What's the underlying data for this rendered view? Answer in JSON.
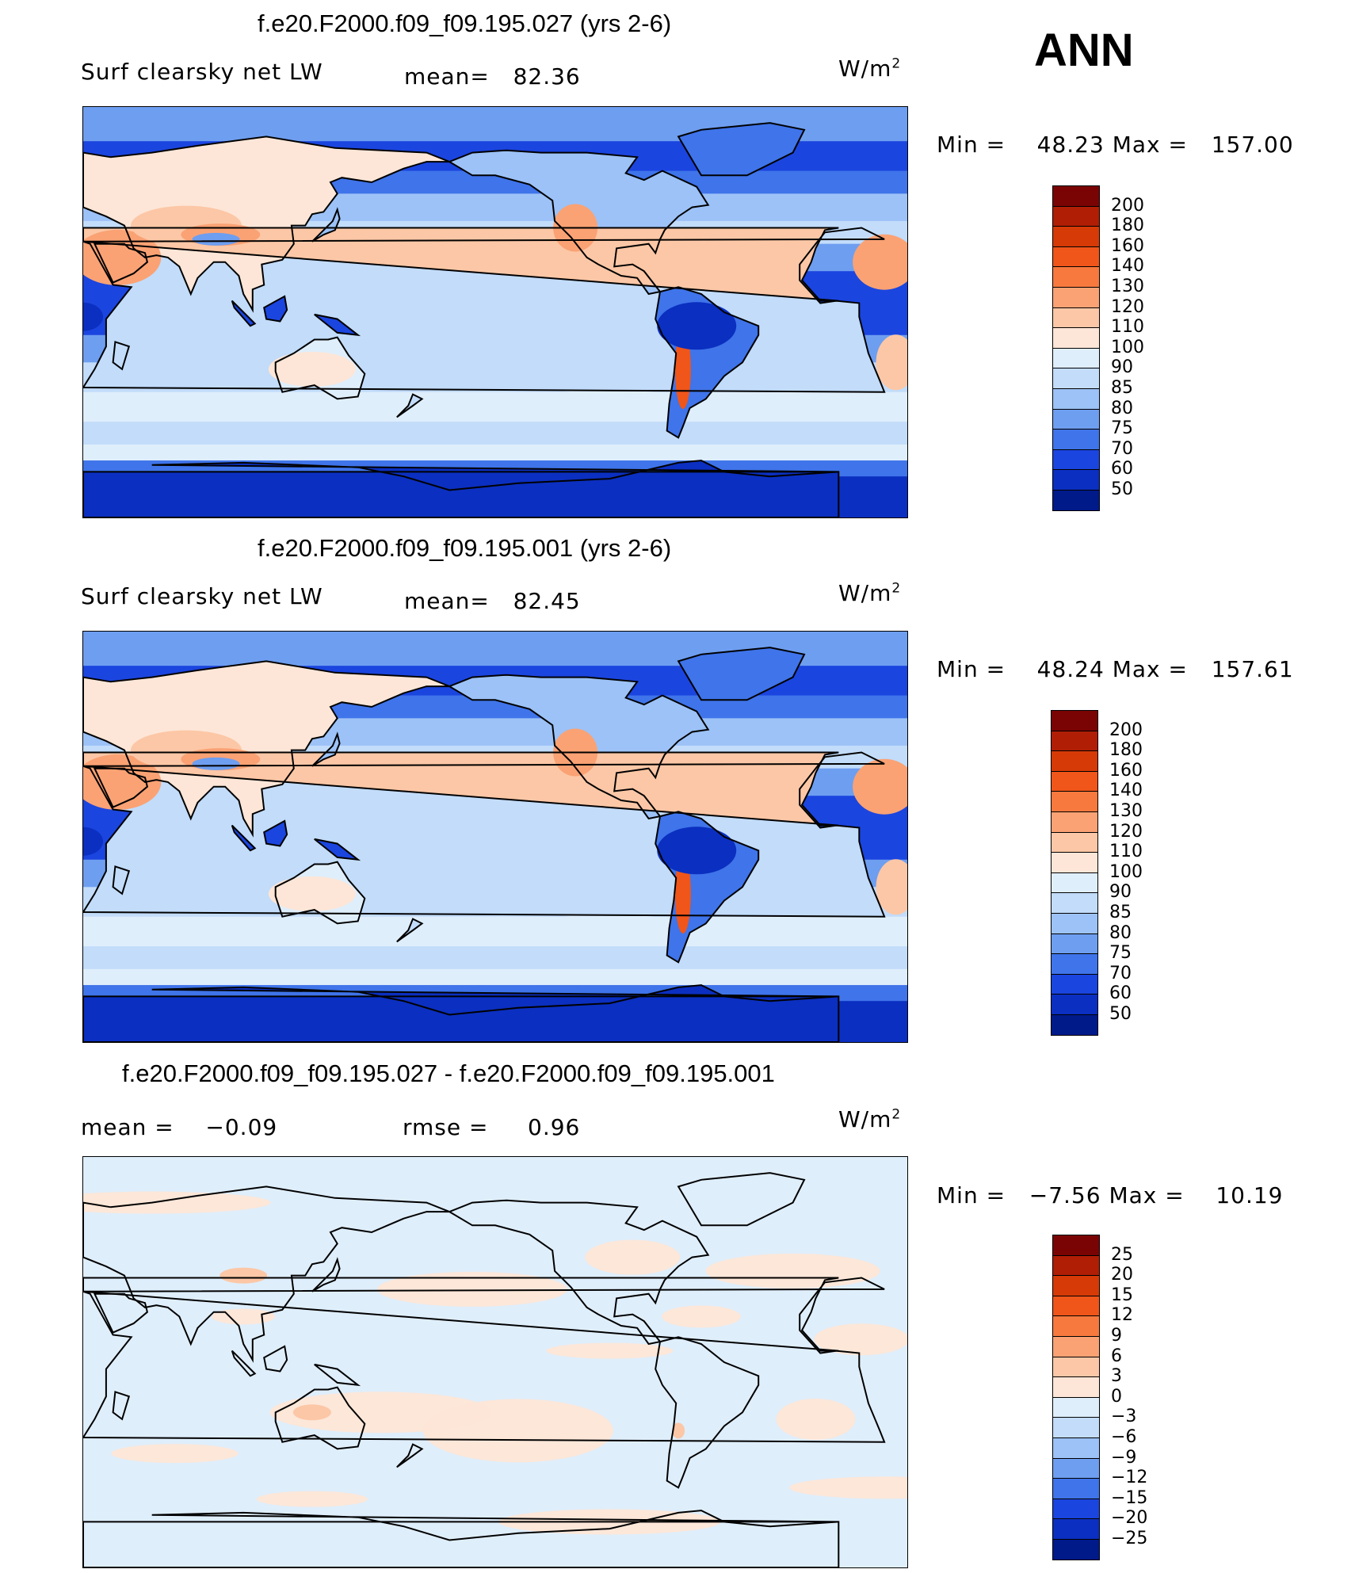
{
  "season": "ANN",
  "panels": [
    {
      "title": "f.e20.F2000.f09_f09.195.027 (yrs 2-6)",
      "left_label": "Surf clearsky net LW",
      "stat_label": "mean=",
      "stat_value": "82.36",
      "units": "W/m",
      "units_exp": "2",
      "min_label": "Min =",
      "min_value": "48.23",
      "max_label": "Max =",
      "max_value": "157.00",
      "colorbar": [
        "200",
        "180",
        "160",
        "140",
        "130",
        "120",
        "110",
        "100",
        "90",
        "85",
        "80",
        "75",
        "70",
        "60",
        "50"
      ]
    },
    {
      "title": "f.e20.F2000.f09_f09.195.001 (yrs 2-6)",
      "left_label": "Surf clearsky net LW",
      "stat_label": "mean=",
      "stat_value": "82.45",
      "units": "W/m",
      "units_exp": "2",
      "min_label": "Min =",
      "min_value": "48.24",
      "max_label": "Max =",
      "max_value": "157.61",
      "colorbar": [
        "200",
        "180",
        "160",
        "140",
        "130",
        "120",
        "110",
        "100",
        "90",
        "85",
        "80",
        "75",
        "70",
        "60",
        "50"
      ]
    },
    {
      "title": "f.e20.F2000.f09_f09.195.027 - f.e20.F2000.f09_f09.195.001",
      "left_label": "mean =",
      "left_value": "−0.09",
      "stat_label": "rmse =",
      "stat_value": "0.96",
      "units": "W/m",
      "units_exp": "2",
      "min_label": "Min =",
      "min_value": "−7.56",
      "max_label": "Max =",
      "max_value": "10.19",
      "colorbar": [
        "25",
        "20",
        "15",
        "12",
        "9",
        "6",
        "3",
        "0",
        "−3",
        "−6",
        "−9",
        "−12",
        "−15",
        "−20",
        "−25"
      ]
    }
  ],
  "colors": {
    "abs_scale": [
      "#7a0403",
      "#b01e05",
      "#d63a07",
      "#f0551a",
      "#f8793d",
      "#faa274",
      "#fcc7a6",
      "#fde6d7",
      "#dfeefb",
      "#c2dcfa",
      "#9cc2f7",
      "#6e9ef0",
      "#3f74ea",
      "#1b45df",
      "#0b2fc0",
      "#001a8a"
    ],
    "diff_scale": [
      "#7a0403",
      "#b01e05",
      "#d63a07",
      "#f0551a",
      "#f8793d",
      "#faa274",
      "#fcc7a6",
      "#fde6d7",
      "#dfeefb",
      "#c2dcfa",
      "#9cc2f7",
      "#6e9ef0",
      "#3f74ea",
      "#1b45df",
      "#0b2fc0",
      "#001a8a"
    ]
  },
  "chart_data": [
    {
      "type": "heatmap",
      "title": "f.e20.F2000.f09_f09.195.027 (yrs 2-6)",
      "variable": "Surf clearsky net LW",
      "units": "W/m2",
      "mean": 82.36,
      "min": 48.23,
      "max": 157.0,
      "contour_levels": [
        50,
        60,
        70,
        75,
        80,
        85,
        90,
        100,
        110,
        120,
        130,
        140,
        160,
        180,
        200
      ]
    },
    {
      "type": "heatmap",
      "title": "f.e20.F2000.f09_f09.195.001 (yrs 2-6)",
      "variable": "Surf clearsky net LW",
      "units": "W/m2",
      "mean": 82.45,
      "min": 48.24,
      "max": 157.61,
      "contour_levels": [
        50,
        60,
        70,
        75,
        80,
        85,
        90,
        100,
        110,
        120,
        130,
        140,
        160,
        180,
        200
      ]
    },
    {
      "type": "heatmap",
      "title": "f.e20.F2000.f09_f09.195.027 - f.e20.F2000.f09_f09.195.001",
      "units": "W/m2",
      "mean": -0.09,
      "rmse": 0.96,
      "min": -7.56,
      "max": 10.19,
      "contour_levels": [
        -25,
        -20,
        -15,
        -12,
        -9,
        -6,
        -3,
        0,
        3,
        6,
        9,
        12,
        15,
        20,
        25
      ]
    }
  ]
}
